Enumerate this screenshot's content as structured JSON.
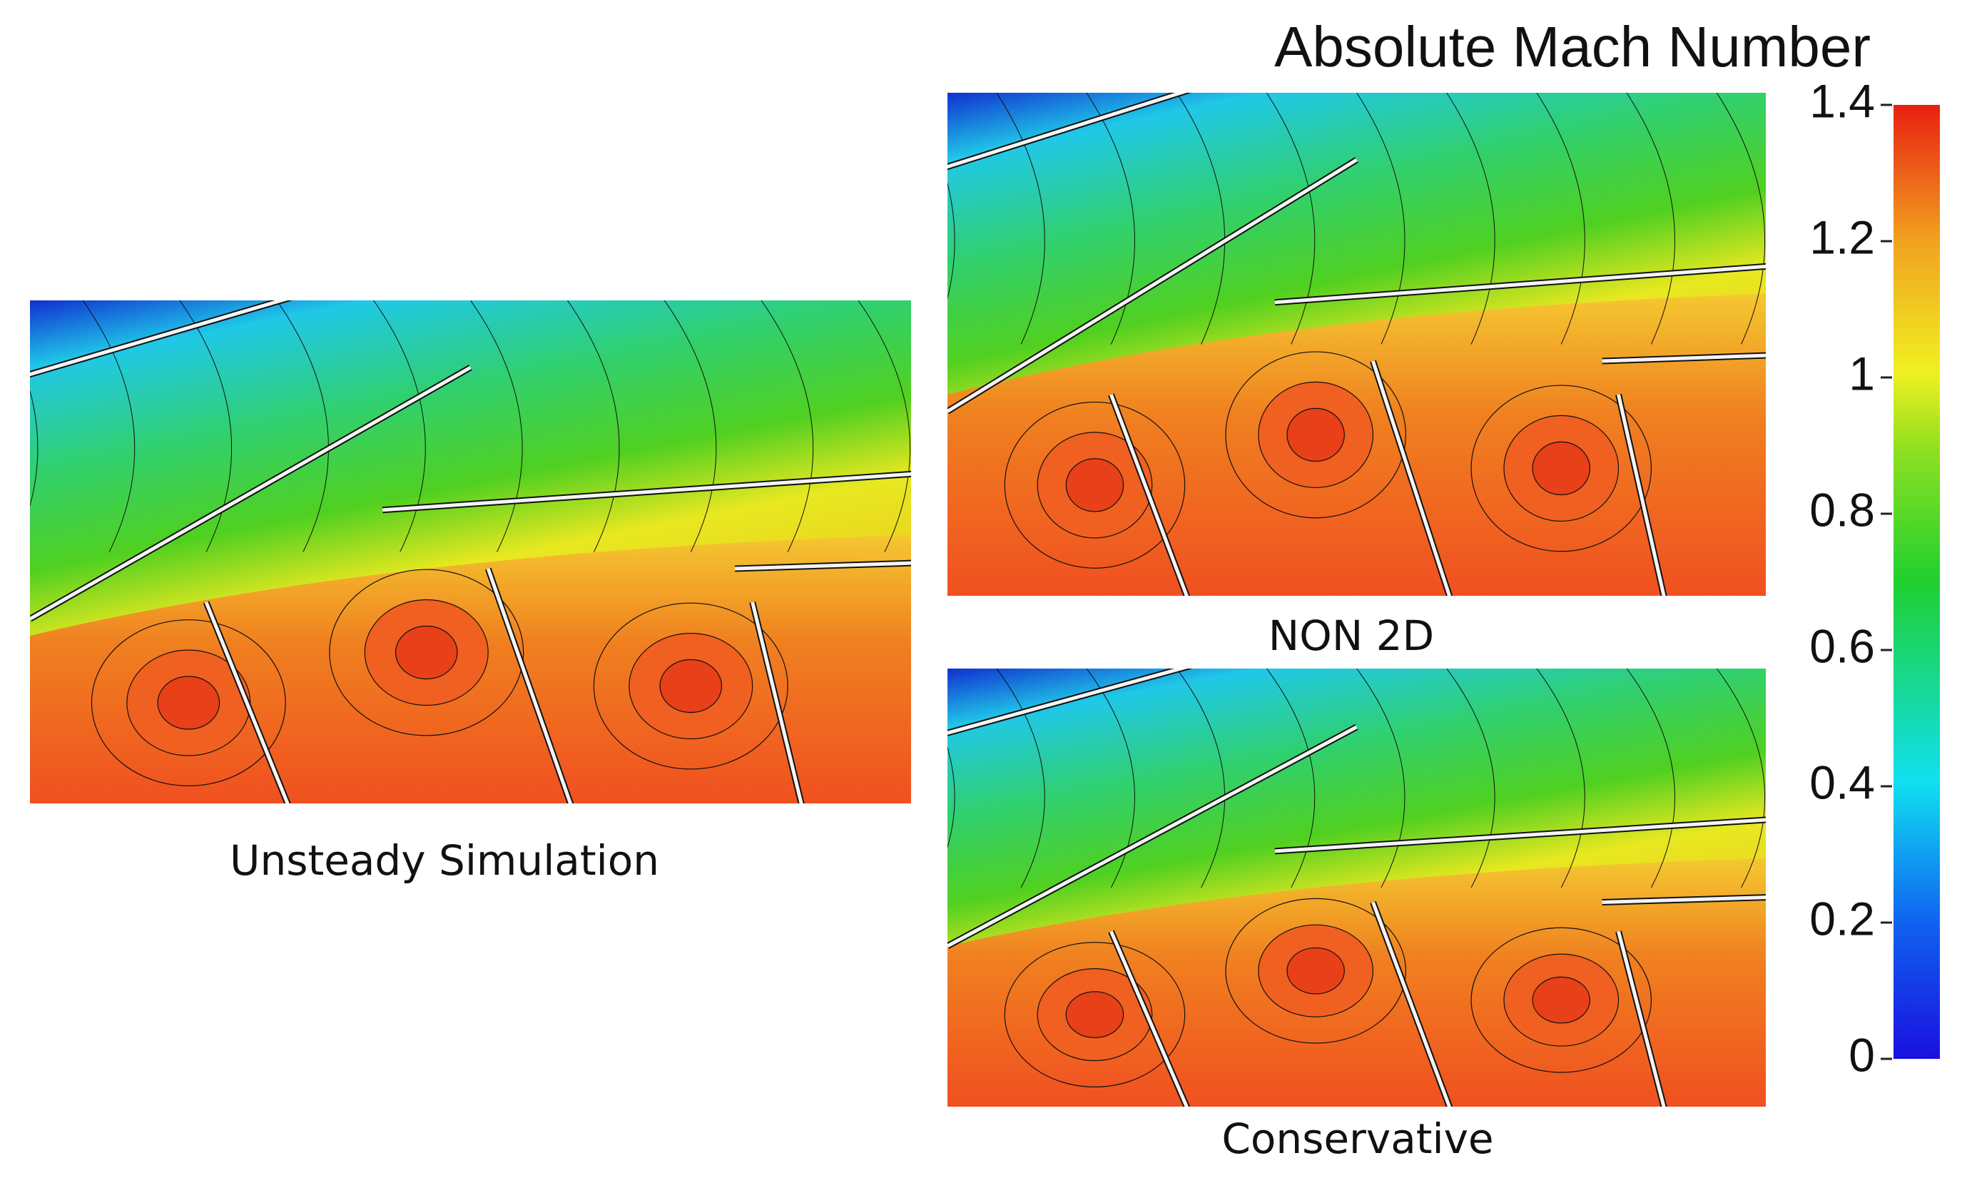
{
  "title": "Absolute Mach Number",
  "colorbar": {
    "lim": [
      0,
      1.4
    ],
    "ticks": [
      0,
      0.2,
      0.4,
      0.6,
      0.8,
      1,
      1.2,
      1.4
    ]
  },
  "panels": [
    {
      "caption": "Unsteady Simulation"
    },
    {
      "caption": "NON 2D"
    },
    {
      "caption": "Conservative"
    }
  ]
}
